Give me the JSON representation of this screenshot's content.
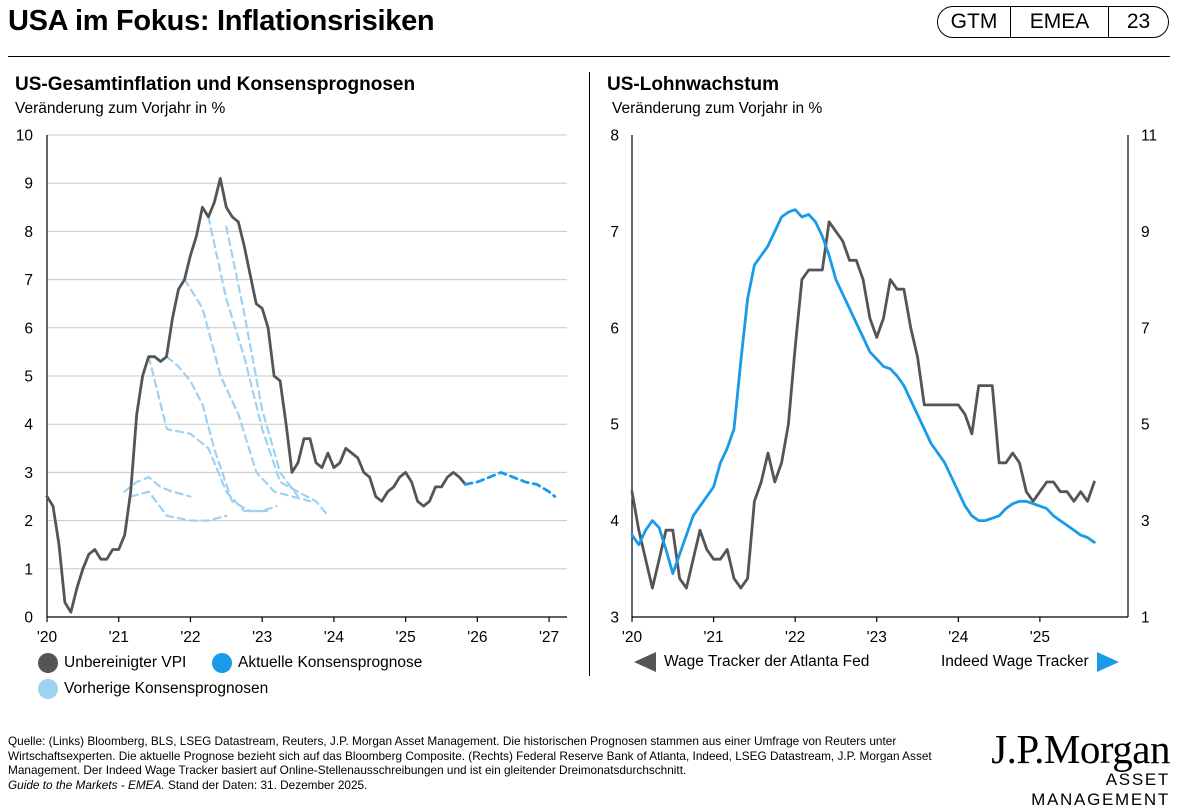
{
  "header": {
    "title": "USA im Fokus: Inflationsrisiken",
    "badge": [
      "GTM",
      "EMEA",
      "23"
    ]
  },
  "colors": {
    "cpi": "#555555",
    "current_consensus": "#1a9be8",
    "previous_consensus": "#9fd1f1",
    "atlanta": "#555555",
    "indeed": "#1a9be8"
  },
  "chart_data": [
    {
      "type": "line",
      "title": "US-Gesamtinflation und Konsensprognosen",
      "subtitle": "Veränderung zum Vorjahr in %",
      "xlim": [
        2020,
        2027.25
      ],
      "ylim": [
        0,
        10
      ],
      "x_ticks": [
        2020,
        2021,
        2022,
        2023,
        2024,
        2025,
        2026,
        2027
      ],
      "x_tick_labels": [
        "'20",
        "'21",
        "'22",
        "'23",
        "'24",
        "'25",
        "'26",
        "'27"
      ],
      "y_ticks": [
        0,
        1,
        2,
        3,
        4,
        5,
        6,
        7,
        8,
        9,
        10
      ],
      "grid": true,
      "legend": [
        {
          "name": "Unbereinigter VPI",
          "color": "#555555"
        },
        {
          "name": "Aktuelle Konsensprognose",
          "color": "#1a9be8"
        },
        {
          "name": "Vorherige Konsensprognosen",
          "color": "#9fd1f1"
        }
      ],
      "series": [
        {
          "name": "Unbereinigter VPI",
          "style": "solid",
          "x_start": 2020.0,
          "step": 0.08333,
          "values": [
            2.5,
            2.3,
            1.5,
            0.3,
            0.1,
            0.6,
            1.0,
            1.3,
            1.4,
            1.2,
            1.2,
            1.4,
            1.4,
            1.7,
            2.6,
            4.2,
            5.0,
            5.4,
            5.4,
            5.3,
            5.4,
            6.2,
            6.8,
            7.0,
            7.5,
            7.9,
            8.5,
            8.3,
            8.6,
            9.1,
            8.5,
            8.3,
            8.2,
            7.7,
            7.1,
            6.5,
            6.4,
            6.0,
            5.0,
            4.9,
            4.0,
            3.0,
            3.2,
            3.7,
            3.7,
            3.2,
            3.1,
            3.4,
            3.1,
            3.2,
            3.5,
            3.4,
            3.3,
            3.0,
            2.9,
            2.5,
            2.4,
            2.6,
            2.7,
            2.9,
            3.0,
            2.8,
            2.4,
            2.3,
            2.4,
            2.7,
            2.7,
            2.9,
            3.0,
            2.9,
            2.75
          ]
        },
        {
          "name": "Aktuelle Konsensprognose",
          "style": "dashed",
          "x": [
            2025.83,
            2026.0,
            2026.17,
            2026.33,
            2026.5,
            2026.67,
            2026.83,
            2027.0,
            2027.08
          ],
          "values": [
            2.75,
            2.8,
            2.9,
            3.0,
            2.9,
            2.8,
            2.75,
            2.6,
            2.5
          ]
        },
        {
          "name": "Vorherige Konsensprognosen",
          "style": "dashed",
          "x": [
            2021.08,
            2021.25,
            2021.42,
            2021.58,
            2021.75,
            2022.0
          ],
          "values": [
            2.6,
            2.8,
            2.9,
            2.7,
            2.6,
            2.5
          ]
        },
        {
          "name": "Vorherige Konsensprognosen",
          "style": "dashed",
          "x": [
            2021.17,
            2021.42,
            2021.67,
            2022.0,
            2022.25,
            2022.5
          ],
          "values": [
            2.5,
            2.6,
            2.1,
            2.0,
            2.0,
            2.1
          ]
        },
        {
          "name": "Vorherige Konsensprognosen",
          "style": "dashed",
          "x": [
            2021.42,
            2021.67,
            2022.0,
            2022.25,
            2022.5,
            2022.75,
            2023.0,
            2023.2
          ],
          "values": [
            5.4,
            3.9,
            3.8,
            3.5,
            2.6,
            2.2,
            2.2,
            2.3
          ]
        },
        {
          "name": "Vorherige Konsensprognosen",
          "style": "dashed",
          "x": [
            2021.67,
            2021.83,
            2022.0,
            2022.17,
            2022.33,
            2022.58,
            2022.83,
            2023.08
          ],
          "values": [
            5.4,
            5.2,
            4.9,
            4.4,
            3.5,
            2.4,
            2.2,
            2.2
          ]
        },
        {
          "name": "Vorherige Konsensprognosen",
          "style": "dashed",
          "x": [
            2021.92,
            2022.17,
            2022.42,
            2022.67,
            2022.92,
            2023.17,
            2023.42,
            2023.67
          ],
          "values": [
            7.0,
            6.4,
            5.0,
            4.2,
            3.0,
            2.6,
            2.5,
            2.4
          ]
        },
        {
          "name": "Vorherige Konsensprognosen",
          "style": "dashed",
          "x": [
            2022.25,
            2022.5,
            2022.75,
            2023.0,
            2023.25,
            2023.5,
            2023.75,
            2023.92
          ],
          "values": [
            8.3,
            6.6,
            5.4,
            3.9,
            2.8,
            2.6,
            2.4,
            2.1
          ]
        },
        {
          "name": "Vorherige Konsensprognosen",
          "style": "dashed",
          "x": [
            2022.5,
            2022.75,
            2023.0,
            2023.25,
            2023.5
          ],
          "values": [
            8.1,
            6.3,
            4.3,
            3.0,
            2.5
          ]
        }
      ]
    },
    {
      "type": "line",
      "title": "US-Lohnwachstum",
      "subtitle": "Veränderung zum Vorjahr in %",
      "xlim": [
        2020,
        2026.08
      ],
      "ylim_left": [
        3,
        8
      ],
      "ylim_right": [
        1,
        11
      ],
      "x_ticks": [
        2020,
        2021,
        2022,
        2023,
        2024,
        2025
      ],
      "x_tick_labels": [
        "'20",
        "'21",
        "'22",
        "'23",
        "'24",
        "'25"
      ],
      "y_ticks_left": [
        3,
        4,
        5,
        6,
        7,
        8
      ],
      "y_ticks_right": [
        1,
        3,
        5,
        7,
        9,
        11
      ],
      "grid": false,
      "legend": [
        {
          "name": "Wage Tracker der Atlanta Fed",
          "axis": "left",
          "color": "#555555"
        },
        {
          "name": "Indeed Wage Tracker",
          "axis": "right",
          "color": "#1a9be8"
        }
      ],
      "series": [
        {
          "name": "Wage Tracker der Atlanta Fed",
          "axis": "left",
          "x_start": 2020.0,
          "step": 0.08333,
          "values": [
            4.3,
            3.9,
            3.6,
            3.3,
            3.6,
            3.9,
            3.9,
            3.4,
            3.3,
            3.6,
            3.9,
            3.7,
            3.6,
            3.6,
            3.7,
            3.4,
            3.3,
            3.4,
            4.2,
            4.4,
            4.7,
            4.4,
            4.6,
            5.0,
            5.8,
            6.5,
            6.6,
            6.6,
            6.6,
            7.1,
            7.0,
            6.9,
            6.7,
            6.7,
            6.5,
            6.1,
            5.9,
            6.1,
            6.5,
            6.4,
            6.4,
            6.0,
            5.7,
            5.2,
            5.2,
            5.2,
            5.2,
            5.2,
            5.2,
            5.1,
            4.9,
            5.4,
            5.4,
            5.4,
            4.6,
            4.6,
            4.7,
            4.6,
            4.3,
            4.2,
            4.3,
            4.4,
            4.4,
            4.3,
            4.3,
            4.2,
            4.3,
            4.2,
            4.4
          ]
        },
        {
          "name": "Indeed Wage Tracker",
          "axis": "right",
          "x_start": 2020.0,
          "step": 0.08333,
          "values": [
            2.7,
            2.5,
            2.8,
            3.0,
            2.85,
            2.4,
            1.9,
            2.3,
            2.7,
            3.1,
            3.3,
            3.5,
            3.7,
            4.2,
            4.5,
            4.9,
            6.3,
            7.6,
            8.3,
            8.5,
            8.7,
            9.0,
            9.3,
            9.4,
            9.45,
            9.3,
            9.35,
            9.2,
            8.9,
            8.5,
            8.0,
            7.7,
            7.4,
            7.1,
            6.8,
            6.5,
            6.35,
            6.2,
            6.15,
            6.0,
            5.8,
            5.5,
            5.2,
            4.9,
            4.6,
            4.4,
            4.2,
            3.9,
            3.6,
            3.3,
            3.1,
            3.0,
            3.0,
            3.05,
            3.1,
            3.25,
            3.35,
            3.4,
            3.4,
            3.35,
            3.3,
            3.25,
            3.1,
            3.0,
            2.9,
            2.8,
            2.7,
            2.65,
            2.55
          ]
        }
      ]
    }
  ],
  "source": {
    "text": "Quelle: (Links) Bloomberg, BLS, LSEG Datastream, Reuters, J.P. Morgan Asset Management. Die historischen Prognosen stammen aus einer Umfrage von Reuters unter Wirtschaftsexperten. Die aktuelle Prognose bezieht sich auf das Bloomberg Composite. (Rechts) Federal Reserve Bank of Atlanta, Indeed, LSEG Datastream, J.P. Morgan Asset Management. Der Indeed Wage Tracker basiert auf Online-Stellenausschreibungen und ist ein gleitender Dreimonatsdurchschnitt.",
    "guide": "Guide to the Markets - EMEA.",
    "date": " Stand der Daten: 31. Dezember 2025."
  },
  "logo": {
    "brand": "J.P.Morgan",
    "sub": "ASSET MANAGEMENT"
  }
}
